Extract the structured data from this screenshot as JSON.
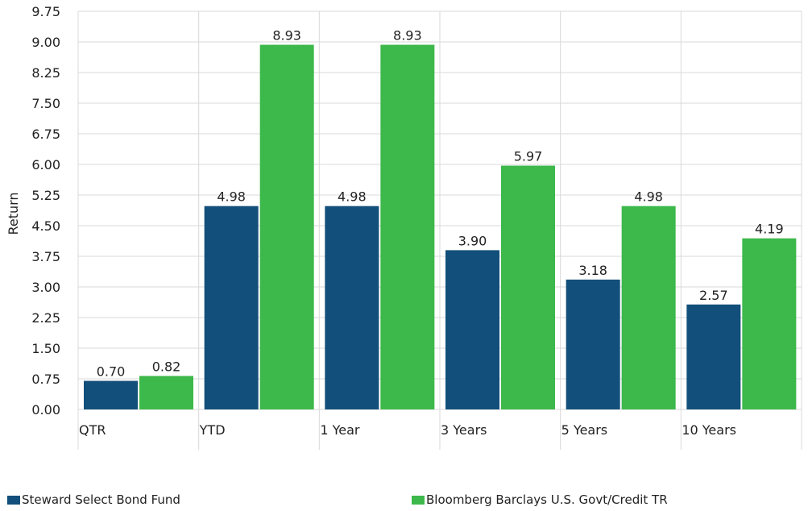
{
  "chart_data": {
    "type": "bar",
    "categories": [
      "QTR",
      "YTD",
      "1 Year",
      "3 Years",
      "5 Years",
      "10 Years"
    ],
    "series": [
      {
        "name": "Steward Select Bond Fund",
        "values": [
          0.7,
          4.98,
          4.98,
          3.9,
          3.18,
          2.57
        ],
        "labels": [
          "0.70",
          "4.98",
          "4.98",
          "3.90",
          "3.18",
          "2.57"
        ],
        "color": "#124f7a"
      },
      {
        "name": "Bloomberg Barclays U.S. Govt/Credit TR",
        "values": [
          0.82,
          8.93,
          8.93,
          5.97,
          4.98,
          4.19
        ],
        "labels": [
          "0.82",
          "8.93",
          "8.93",
          "5.97",
          "4.98",
          "4.19"
        ],
        "color": "#3db84a"
      }
    ],
    "ylabel": "Return",
    "xlabel": "",
    "ylim": [
      0,
      9.75
    ],
    "yticks": [
      "0.00",
      "0.75",
      "1.50",
      "2.25",
      "3.00",
      "3.75",
      "4.50",
      "5.25",
      "6.00",
      "6.75",
      "7.50",
      "8.25",
      "9.00",
      "9.75"
    ],
    "grid": true,
    "legend_position": "bottom"
  }
}
